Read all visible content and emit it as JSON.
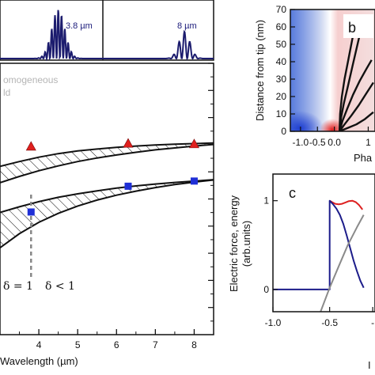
{
  "colors": {
    "spectrum": "#1c1c6e",
    "triangle": "#e0201e",
    "square": "#1f2fd6",
    "dashed": "#888888",
    "curve_red": "#dd2020",
    "curve_blue": "#1c1c8a",
    "curve_grey": "#8a8a8a",
    "phase_blue": "#3a63d6",
    "phase_red": "#e04646"
  },
  "icons": {
    "triangle_marker": "triangle-marker-icon",
    "square_marker": "square-marker-icon"
  },
  "panel_a": {
    "spectra_labels": [
      "3.8 µm",
      "8 µm"
    ],
    "annotation_lines": [
      "omogeneous",
      "ld"
    ],
    "regime_left": "δ = 1",
    "regime_right": "δ < 1",
    "xlabel": "Wavelength (µm)",
    "x_ticks": [
      "4",
      "5",
      "6",
      "7",
      "8"
    ]
  },
  "panel_b": {
    "letter": "b",
    "ylabel": "Distance from tip (nm)",
    "xlabel": "Pha",
    "y_ticks": [
      "0",
      "10",
      "20",
      "30",
      "40",
      "50",
      "60",
      "70"
    ],
    "x_ticks": [
      "-1.0",
      "-0.5",
      "0.0",
      "1"
    ]
  },
  "panel_c": {
    "letter": "c",
    "ylabel_line1": "Electric force, energy",
    "ylabel_line2": "(arb.units)",
    "xlabel": "I",
    "y_ticks": [
      "0",
      "1"
    ],
    "x_ticks": [
      "-1.0",
      "-0.5",
      "-"
    ]
  },
  "chart_data": [
    {
      "panel": "a-spectra",
      "type": "line",
      "series": [
        {
          "label_ref": "3.8 µm",
          "center_um": 4.5,
          "fringe_period_um": 0.085,
          "envelope_width_um": 0.24,
          "peak": 1.0
        },
        {
          "label_ref": "8 µm",
          "center_um": 7.75,
          "fringe_period_um": 0.14,
          "envelope_width_um": 0.2,
          "peak": 0.55
        }
      ],
      "xlim": [
        3,
        8.5
      ]
    },
    {
      "panel": "a",
      "type": "scatter",
      "xlim": [
        3,
        8.5
      ],
      "ylim": [
        0,
        1
      ],
      "x_ticks": [
        4,
        5,
        6,
        7,
        8
      ],
      "series": [
        {
          "marker": "triangle",
          "x": [
            3.8,
            6.3,
            8.0
          ],
          "y": [
            0.694,
            0.705,
            0.703
          ]
        },
        {
          "marker": "square",
          "x": [
            3.8,
            6.3,
            8.0
          ],
          "y": [
            0.452,
            0.547,
            0.566
          ]
        }
      ],
      "bands": [
        {
          "x": [
            3,
            3.5,
            4,
            4.5,
            5,
            5.5,
            6,
            6.5,
            7,
            7.5,
            8,
            8.5
          ],
          "upper": [
            0.62,
            0.638,
            0.654,
            0.667,
            0.677,
            0.684,
            0.69,
            0.695,
            0.699,
            0.702,
            0.704,
            0.706
          ],
          "lower": [
            0.56,
            0.583,
            0.604,
            0.622,
            0.638,
            0.651,
            0.662,
            0.672,
            0.681,
            0.688,
            0.695,
            0.701
          ]
        },
        {
          "x": [
            3,
            3.5,
            4,
            4.5,
            5,
            5.5,
            6,
            6.5,
            7,
            7.5,
            8,
            8.5
          ],
          "upper": [
            0.45,
            0.471,
            0.49,
            0.506,
            0.519,
            0.53,
            0.54,
            0.548,
            0.555,
            0.561,
            0.566,
            0.571
          ],
          "lower": [
            0.32,
            0.372,
            0.414,
            0.447,
            0.474,
            0.496,
            0.514,
            0.529,
            0.542,
            0.553,
            0.562,
            0.57
          ]
        }
      ],
      "dashed_x": 3.8
    },
    {
      "panel": "b",
      "type": "line",
      "xlim": [
        -1.3,
        1.2
      ],
      "ylim": [
        0,
        70
      ],
      "x_ticks": [
        -1.0,
        -0.5,
        0.0,
        1.0
      ],
      "y_ticks": [
        0,
        10,
        20,
        30,
        40,
        50,
        60,
        70
      ],
      "series": [
        {
          "x": [
            0.15,
            0.17,
            0.22,
            0.3,
            0.4,
            0.52,
            0.62
          ],
          "y": [
            0,
            10,
            20,
            30,
            40,
            52,
            62
          ]
        },
        {
          "x": [
            0.15,
            0.2,
            0.28,
            0.4,
            0.53,
            0.66,
            0.78
          ],
          "y": [
            0,
            8,
            16,
            26,
            37,
            48,
            58
          ]
        },
        {
          "x": [
            0.15,
            0.24,
            0.38,
            0.55,
            0.75,
            0.95,
            1.1
          ],
          "y": [
            0,
            6,
            13,
            21,
            29,
            36,
            41
          ]
        },
        {
          "x": [
            0.15,
            0.3,
            0.5,
            0.72,
            0.95,
            1.15
          ],
          "y": [
            0,
            4,
            9,
            15,
            22,
            28
          ]
        },
        {
          "x": [
            0.15,
            0.4,
            0.65,
            0.9,
            1.15
          ],
          "y": [
            0,
            2,
            4,
            7,
            11
          ]
        }
      ]
    },
    {
      "panel": "c",
      "type": "line",
      "xlim": [
        -1.0,
        -0.1
      ],
      "ylim": [
        -0.25,
        1.3
      ],
      "x_ticks": [
        -1.0,
        -0.5
      ],
      "y_ticks": [
        0,
        1
      ],
      "series": [
        {
          "color": "red",
          "x": [
            -0.5,
            -0.48,
            -0.45,
            -0.42,
            -0.39,
            -0.36,
            -0.33,
            -0.3,
            -0.27,
            -0.24,
            -0.21
          ],
          "y": [
            1.0,
            0.985,
            0.965,
            0.96,
            0.965,
            0.98,
            0.995,
            1.0,
            0.985,
            0.95,
            0.9
          ]
        },
        {
          "color": "blue",
          "x": [
            -1.0,
            -0.5,
            -0.5,
            -0.47,
            -0.44,
            -0.41,
            -0.38,
            -0.35,
            -0.32,
            -0.29,
            -0.26,
            -0.23,
            -0.2
          ],
          "y": [
            0,
            0,
            1.0,
            0.96,
            0.91,
            0.84,
            0.74,
            0.61,
            0.47,
            0.33,
            0.21,
            0.1,
            0.02
          ]
        },
        {
          "color": "grey",
          "x": [
            -0.58,
            -0.5,
            -0.42,
            -0.34,
            -0.26,
            -0.2
          ],
          "y": [
            -0.25,
            0.02,
            0.26,
            0.5,
            0.7,
            0.84
          ]
        }
      ]
    }
  ]
}
